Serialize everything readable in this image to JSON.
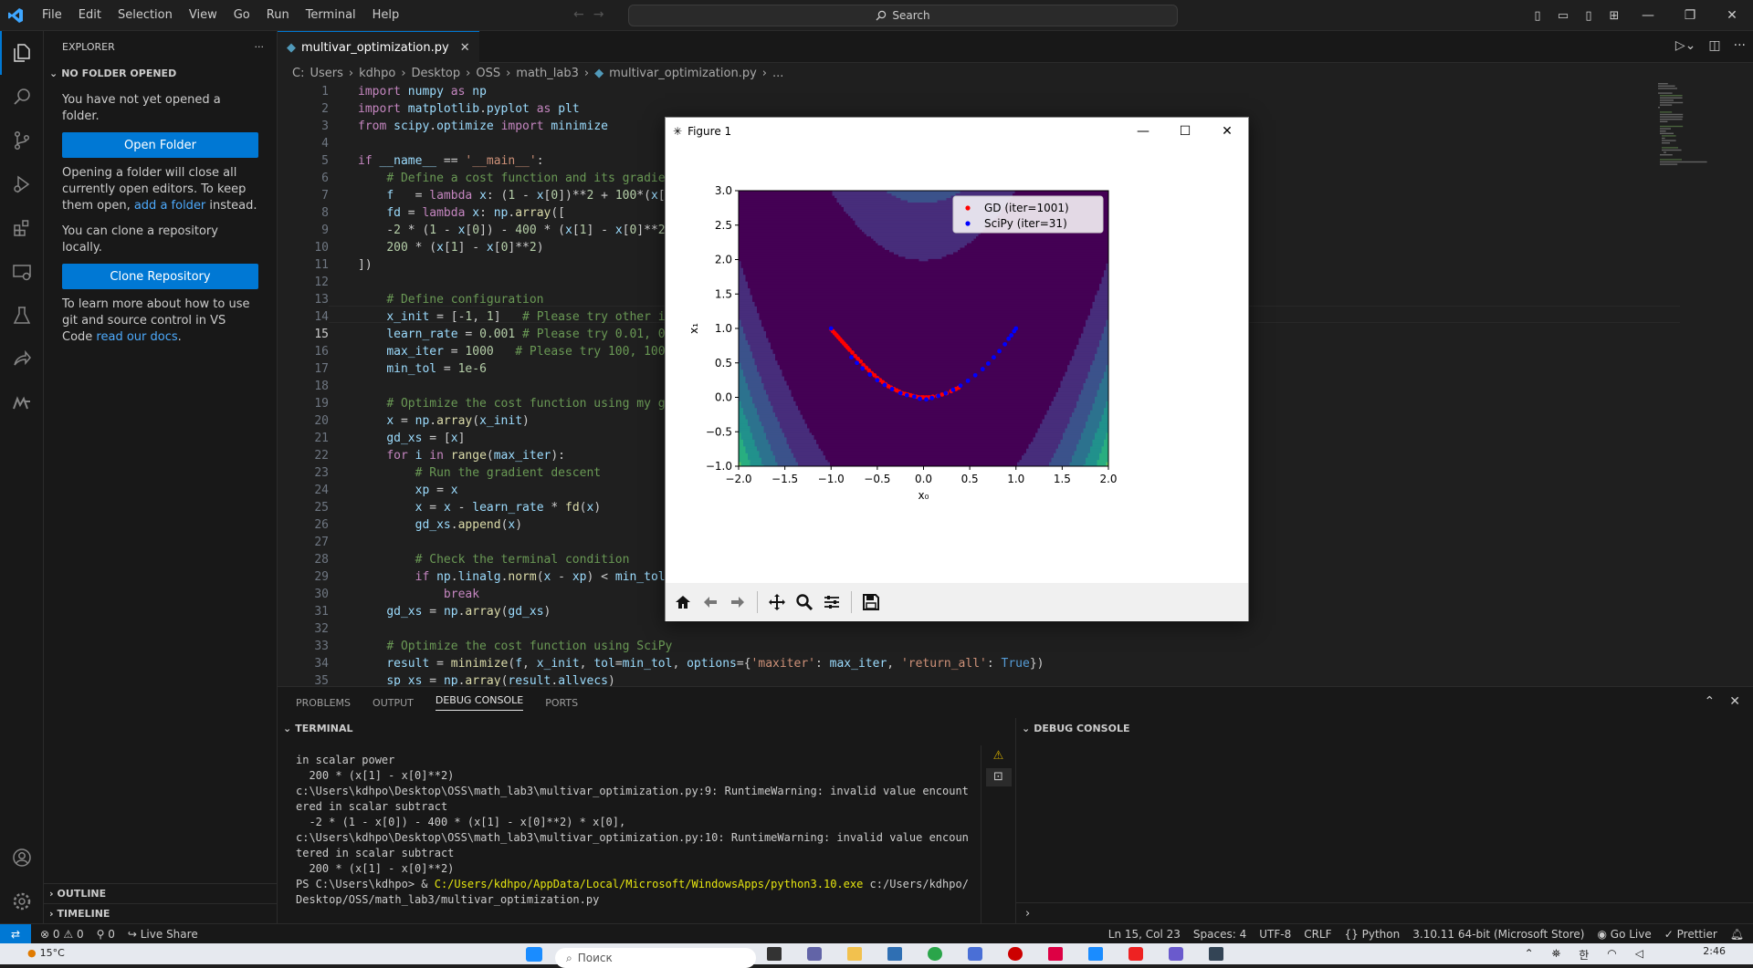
{
  "titlebar": {
    "menu": [
      "File",
      "Edit",
      "Selection",
      "View",
      "Go",
      "Run",
      "Terminal",
      "Help"
    ],
    "search_placeholder": "Search"
  },
  "sidebar": {
    "header": "EXPLORER",
    "section": "NO FOLDER OPENED",
    "msg1": "You have not yet opened a folder.",
    "open_folder": "Open Folder",
    "msg2_a": "Opening a folder will close all currently open editors. To keep them open, ",
    "msg2_link": "add a folder",
    "msg2_b": " instead.",
    "msg3": "You can clone a repository locally.",
    "clone": "Clone Repository",
    "msg4_a": "To learn more about how to use git and source control in VS Code ",
    "msg4_link": "read our docs",
    "msg4_b": ".",
    "outline": "OUTLINE",
    "timeline": "TIMELINE"
  },
  "editor": {
    "tab": "multivar_optimization.py",
    "breadcrumb": [
      "C:",
      "Users",
      "kdhpo",
      "Desktop",
      "OSS",
      "math_lab3",
      "multivar_optimization.py",
      "..."
    ],
    "current_line": 15
  },
  "code_lines": [
    "import numpy as np",
    "import matplotlib.pyplot as plt",
    "from scipy.optimize import minimize",
    "",
    "if __name__ == '__main__':",
    "    # Define a cost function and its gradient",
    "    f   = lambda x: (1 - x[0])**2 + 100*(x[1]",
    "    fd = lambda x: np.array([",
    "    -2 * (1 - x[0]) - 400 * (x[1] - x[0]**2) *",
    "    200 * (x[1] - x[0]**2)",
    "])",
    "",
    "    # Define configuration",
    "    x_init = [-1, 1]   # Please try other init",
    "    learn_rate = 0.001 # Please try 0.01, 0.00",
    "    max_iter = 1000   # Please try 100, 1000,",
    "    min_tol = 1e-6",
    "",
    "    # Optimize the cost function using my grad",
    "    x = np.array(x_init)",
    "    gd_xs = [x]",
    "    for i in range(max_iter):",
    "        # Run the gradient descent",
    "        xp = x",
    "        x = x - learn_rate * fd(x)",
    "        gd_xs.append(x)",
    "",
    "        # Check the terminal condition",
    "        if np.linalg.norm(x - xp) < min_tol:",
    "            break",
    "    gd_xs = np.array(gd_xs)",
    "",
    "    # Optimize the cost function using SciPy",
    "    result = minimize(f, x_init, tol=min_tol, options={'maxiter': max_iter, 'return_all': True})",
    "    sp_xs = np.array(result.allvecs)"
  ],
  "panel": {
    "tabs": [
      "PROBLEMS",
      "OUTPUT",
      "DEBUG CONSOLE",
      "PORTS"
    ],
    "active_tab": "DEBUG CONSOLE",
    "terminal_header": "TERMINAL",
    "debug_header": "DEBUG CONSOLE",
    "terminal_lines": [
      "in scalar power",
      "  200 * (x[1] - x[0]**2)",
      "c:\\Users\\kdhpo\\Desktop\\OSS\\math_lab3\\multivar_optimization.py:9: RuntimeWarning: invalid value encountered in scalar subtract",
      "  -2 * (1 - x[0]) - 400 * (x[1] - x[0]**2) * x[0],",
      "c:\\Users\\kdhpo\\Desktop\\OSS\\math_lab3\\multivar_optimization.py:10: RuntimeWarning: invalid value encountered in scalar subtract",
      "  200 * (x[1] - x[0]**2)"
    ],
    "prompt": "PS C:\\Users\\kdhpo> & ",
    "prompt_exe": "C:/Users/kdhpo/AppData/Local/Microsoft/WindowsApps/python3.10.exe",
    "prompt_arg": " c:/Users/kdhpo/Desktop/OSS/math_lab3/multivar_optimization.py"
  },
  "status": {
    "errors": "0",
    "warnings": "0",
    "ports": "0",
    "live_share": "Live Share",
    "position": "Ln 15, Col 23",
    "spaces": "Spaces: 4",
    "encoding": "UTF-8",
    "eol": "CRLF",
    "language": "Python",
    "interpreter": "3.10.11 64-bit (Microsoft Store)",
    "go_live": "Go Live",
    "prettier": "Prettier"
  },
  "taskbar": {
    "weather": "15°C",
    "search": "Поиск",
    "time": "2:46",
    "lang": "한"
  },
  "figure": {
    "window_title": "Figure 1",
    "chart_data": {
      "type": "scatter",
      "background": "contour",
      "xlabel": "x₀",
      "ylabel": "x₁",
      "xlim": [
        -2.0,
        2.0
      ],
      "ylim": [
        -1.0,
        3.0
      ],
      "xticks": [
        "−2.0",
        "−1.5",
        "−1.0",
        "−0.5",
        "0.0",
        "0.5",
        "1.0",
        "1.5",
        "2.0"
      ],
      "yticks": [
        "−1.0",
        "−0.5",
        "0.0",
        "0.5",
        "1.0",
        "1.5",
        "2.0",
        "2.5",
        "3.0"
      ],
      "legend_position": "top-right",
      "series": [
        {
          "name": "GD (iter=1001)",
          "color": "#ff0000",
          "x": [
            -1.0,
            -0.98,
            -0.96,
            -0.94,
            -0.92,
            -0.9,
            -0.88,
            -0.86,
            -0.84,
            -0.82,
            -0.8,
            -0.77,
            -0.74,
            -0.71,
            -0.68,
            -0.65,
            -0.62,
            -0.59,
            -0.56,
            -0.53,
            -0.5,
            -0.47,
            -0.44,
            -0.41,
            -0.38,
            -0.35,
            -0.32,
            -0.29,
            -0.26,
            -0.23,
            -0.2,
            -0.17,
            -0.14,
            -0.11,
            -0.08,
            -0.05,
            -0.02,
            0.0,
            0.03,
            0.06,
            0.1,
            0.15,
            0.2,
            0.25,
            0.3,
            0.35,
            0.38
          ],
          "y": [
            0.99,
            0.96,
            0.93,
            0.9,
            0.87,
            0.84,
            0.81,
            0.78,
            0.75,
            0.72,
            0.69,
            0.65,
            0.6,
            0.56,
            0.52,
            0.47,
            0.43,
            0.39,
            0.35,
            0.32,
            0.28,
            0.25,
            0.22,
            0.19,
            0.16,
            0.14,
            0.12,
            0.1,
            0.08,
            0.06,
            0.05,
            0.04,
            0.03,
            0.02,
            0.01,
            0.0,
            0.0,
            0.0,
            0.0,
            0.0,
            0.01,
            0.02,
            0.04,
            0.06,
            0.09,
            0.12,
            0.14
          ]
        },
        {
          "name": "SciPy (iter=31)",
          "color": "#0000ff",
          "x": [
            -1.0,
            -0.78,
            -0.72,
            -0.66,
            -0.58,
            -0.5,
            -0.42,
            -0.34,
            -0.25,
            -0.18,
            -0.1,
            -0.04,
            0.03,
            0.09,
            0.16,
            0.24,
            0.32,
            0.4,
            0.48,
            0.56,
            0.64,
            0.7,
            0.76,
            0.82,
            0.88,
            0.92,
            0.95,
            0.98,
            1.0
          ],
          "y": [
            1.0,
            0.58,
            0.5,
            0.42,
            0.33,
            0.25,
            0.18,
            0.12,
            0.06,
            0.03,
            0.01,
            -0.02,
            -0.03,
            -0.01,
            0.02,
            0.06,
            0.11,
            0.17,
            0.24,
            0.32,
            0.41,
            0.49,
            0.58,
            0.67,
            0.77,
            0.85,
            0.9,
            0.96,
            1.0
          ]
        }
      ]
    }
  }
}
